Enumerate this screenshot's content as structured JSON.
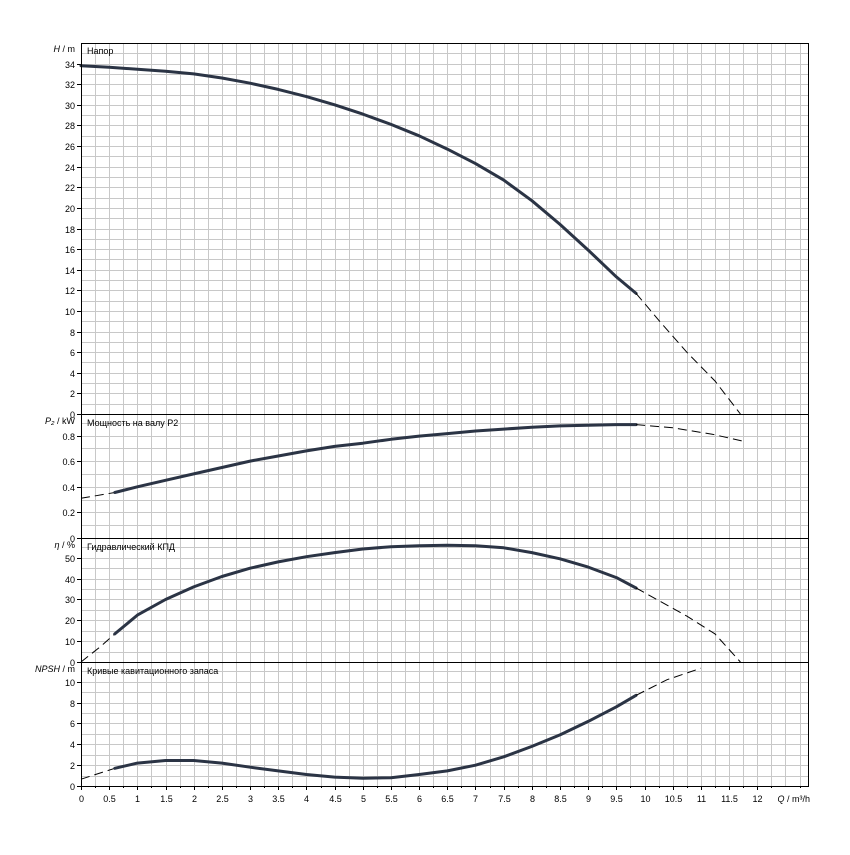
{
  "chart_data": [
    {
      "type": "line",
      "panel_label": "Напор",
      "y_symbol": "H",
      "y_unit": "m",
      "ylim": [
        0,
        36
      ],
      "yticks": [
        0,
        2,
        4,
        6,
        8,
        10,
        12,
        14,
        16,
        18,
        20,
        22,
        24,
        26,
        28,
        30,
        32,
        34
      ],
      "ytick_labels": [
        "0",
        "2",
        "4",
        "6",
        "8",
        "10",
        "12",
        "14",
        "16",
        "18",
        "20",
        "22",
        "24",
        "26",
        "28",
        "30",
        "32",
        "34"
      ],
      "series": [
        {
          "style": "solid",
          "x": [
            0,
            0.5,
            1,
            1.5,
            2,
            2.5,
            3,
            3.5,
            4,
            4.5,
            5,
            5.5,
            6,
            6.5,
            7,
            7.5,
            8,
            8.5,
            9,
            9.5,
            9.85
          ],
          "y": [
            33.8,
            33.65,
            33.45,
            33.25,
            33.0,
            32.6,
            32.1,
            31.5,
            30.8,
            30.0,
            29.1,
            28.1,
            27.0,
            25.7,
            24.3,
            22.7,
            20.7,
            18.4,
            15.9,
            13.3,
            11.7
          ]
        },
        {
          "style": "dashed",
          "x": [
            9.85,
            10.25,
            10.75,
            11.25,
            11.7
          ],
          "y": [
            11.7,
            9.1,
            6.0,
            3.2,
            0
          ]
        }
      ],
      "grid": true
    },
    {
      "type": "line",
      "panel_label": "Мощность на валу P2",
      "y_symbol": "P₂",
      "y_unit": "kW",
      "ylim": [
        0,
        0.96
      ],
      "yticks": [
        0,
        0.2,
        0.4,
        0.6,
        0.8
      ],
      "ytick_labels": [
        "0",
        "0.2",
        "0.4",
        "0.6",
        "0.8"
      ],
      "series": [
        {
          "style": "dashed",
          "x": [
            0,
            0.6
          ],
          "y": [
            0.31,
            0.355
          ]
        },
        {
          "style": "solid",
          "x": [
            0.6,
            1,
            1.5,
            2,
            2.5,
            3,
            3.5,
            4,
            4.5,
            5,
            5.5,
            6,
            6.5,
            7,
            7.5,
            8,
            8.5,
            9,
            9.5,
            9.85
          ],
          "y": [
            0.355,
            0.4,
            0.45,
            0.5,
            0.55,
            0.6,
            0.64,
            0.68,
            0.715,
            0.74,
            0.77,
            0.795,
            0.815,
            0.835,
            0.85,
            0.865,
            0.875,
            0.88,
            0.885,
            0.885
          ]
        },
        {
          "style": "dashed",
          "x": [
            9.85,
            10.5,
            11.2,
            11.8
          ],
          "y": [
            0.885,
            0.86,
            0.81,
            0.75
          ]
        }
      ],
      "grid": true
    },
    {
      "type": "line",
      "panel_label": "Гидравлический КПД",
      "y_symbol": "η",
      "y_unit": "%",
      "ylim": [
        0,
        59
      ],
      "yticks": [
        0,
        10,
        20,
        30,
        40,
        50
      ],
      "ytick_labels": [
        "0",
        "10",
        "20",
        "30",
        "40",
        "50"
      ],
      "series": [
        {
          "style": "dashed",
          "x": [
            0,
            0.35,
            0.6
          ],
          "y": [
            0,
            7.5,
            13.5
          ]
        },
        {
          "style": "solid",
          "x": [
            0.6,
            1,
            1.5,
            2,
            2.5,
            3,
            3.5,
            4,
            4.5,
            5,
            5.5,
            6,
            6.5,
            7,
            7.5,
            8,
            8.5,
            9,
            9.5,
            9.85
          ],
          "y": [
            13.5,
            22.5,
            30,
            36,
            41,
            45,
            48,
            50.5,
            52.5,
            54.2,
            55.3,
            55.8,
            56,
            55.8,
            54.8,
            52.5,
            49.5,
            45.5,
            40.5,
            35.5
          ]
        },
        {
          "style": "dashed",
          "x": [
            9.85,
            10.25,
            10.75,
            11.25,
            11.7
          ],
          "y": [
            35.5,
            29.5,
            22,
            13.5,
            0
          ]
        }
      ],
      "grid": true
    },
    {
      "type": "line",
      "panel_label": "Кривые кавитационного запаса",
      "y_symbol": "NPSH",
      "y_unit": "m",
      "ylim": [
        0,
        11.8
      ],
      "yticks": [
        0,
        2,
        4,
        6,
        8,
        10
      ],
      "ytick_labels": [
        "0",
        "2",
        "4",
        "6",
        "8",
        "10"
      ],
      "series": [
        {
          "style": "dashed",
          "x": [
            0,
            0.6
          ],
          "y": [
            0.65,
            1.7
          ]
        },
        {
          "style": "solid",
          "x": [
            0.6,
            1,
            1.5,
            2,
            2.5,
            3,
            3.5,
            4,
            4.5,
            5,
            5.5,
            6,
            6.5,
            7,
            7.5,
            8,
            8.5,
            9,
            9.5,
            9.85
          ],
          "y": [
            1.7,
            2.2,
            2.45,
            2.45,
            2.2,
            1.8,
            1.45,
            1.1,
            0.85,
            0.75,
            0.8,
            1.1,
            1.45,
            2.0,
            2.8,
            3.8,
            4.9,
            6.2,
            7.6,
            8.7
          ]
        },
        {
          "style": "dashed",
          "x": [
            9.85,
            10.4,
            11
          ],
          "y": [
            8.7,
            10.2,
            11.3
          ]
        }
      ],
      "grid": true
    }
  ],
  "x_axis": {
    "symbol": "Q",
    "unit": "m³/h",
    "xlim": [
      0,
      12.9
    ],
    "ticks": [
      0,
      0.5,
      1,
      1.5,
      2,
      2.5,
      3,
      3.5,
      4,
      4.5,
      5,
      5.5,
      6,
      6.5,
      7,
      7.5,
      8,
      8.5,
      9,
      9.5,
      10,
      10.5,
      11,
      11.5,
      12
    ],
    "tick_labels": [
      "0",
      "0.5",
      "1",
      "1.5",
      "2",
      "2.5",
      "3",
      "3.5",
      "4",
      "4.5",
      "5",
      "5.5",
      "6",
      "6.5",
      "7",
      "7.5",
      "8",
      "8.5",
      "9",
      "9.5",
      "10",
      "10.5",
      "11",
      "11.5",
      "12"
    ]
  },
  "colors": {
    "curve": "#2b3445",
    "grid": "#c8c8c8",
    "frame": "#000000"
  }
}
